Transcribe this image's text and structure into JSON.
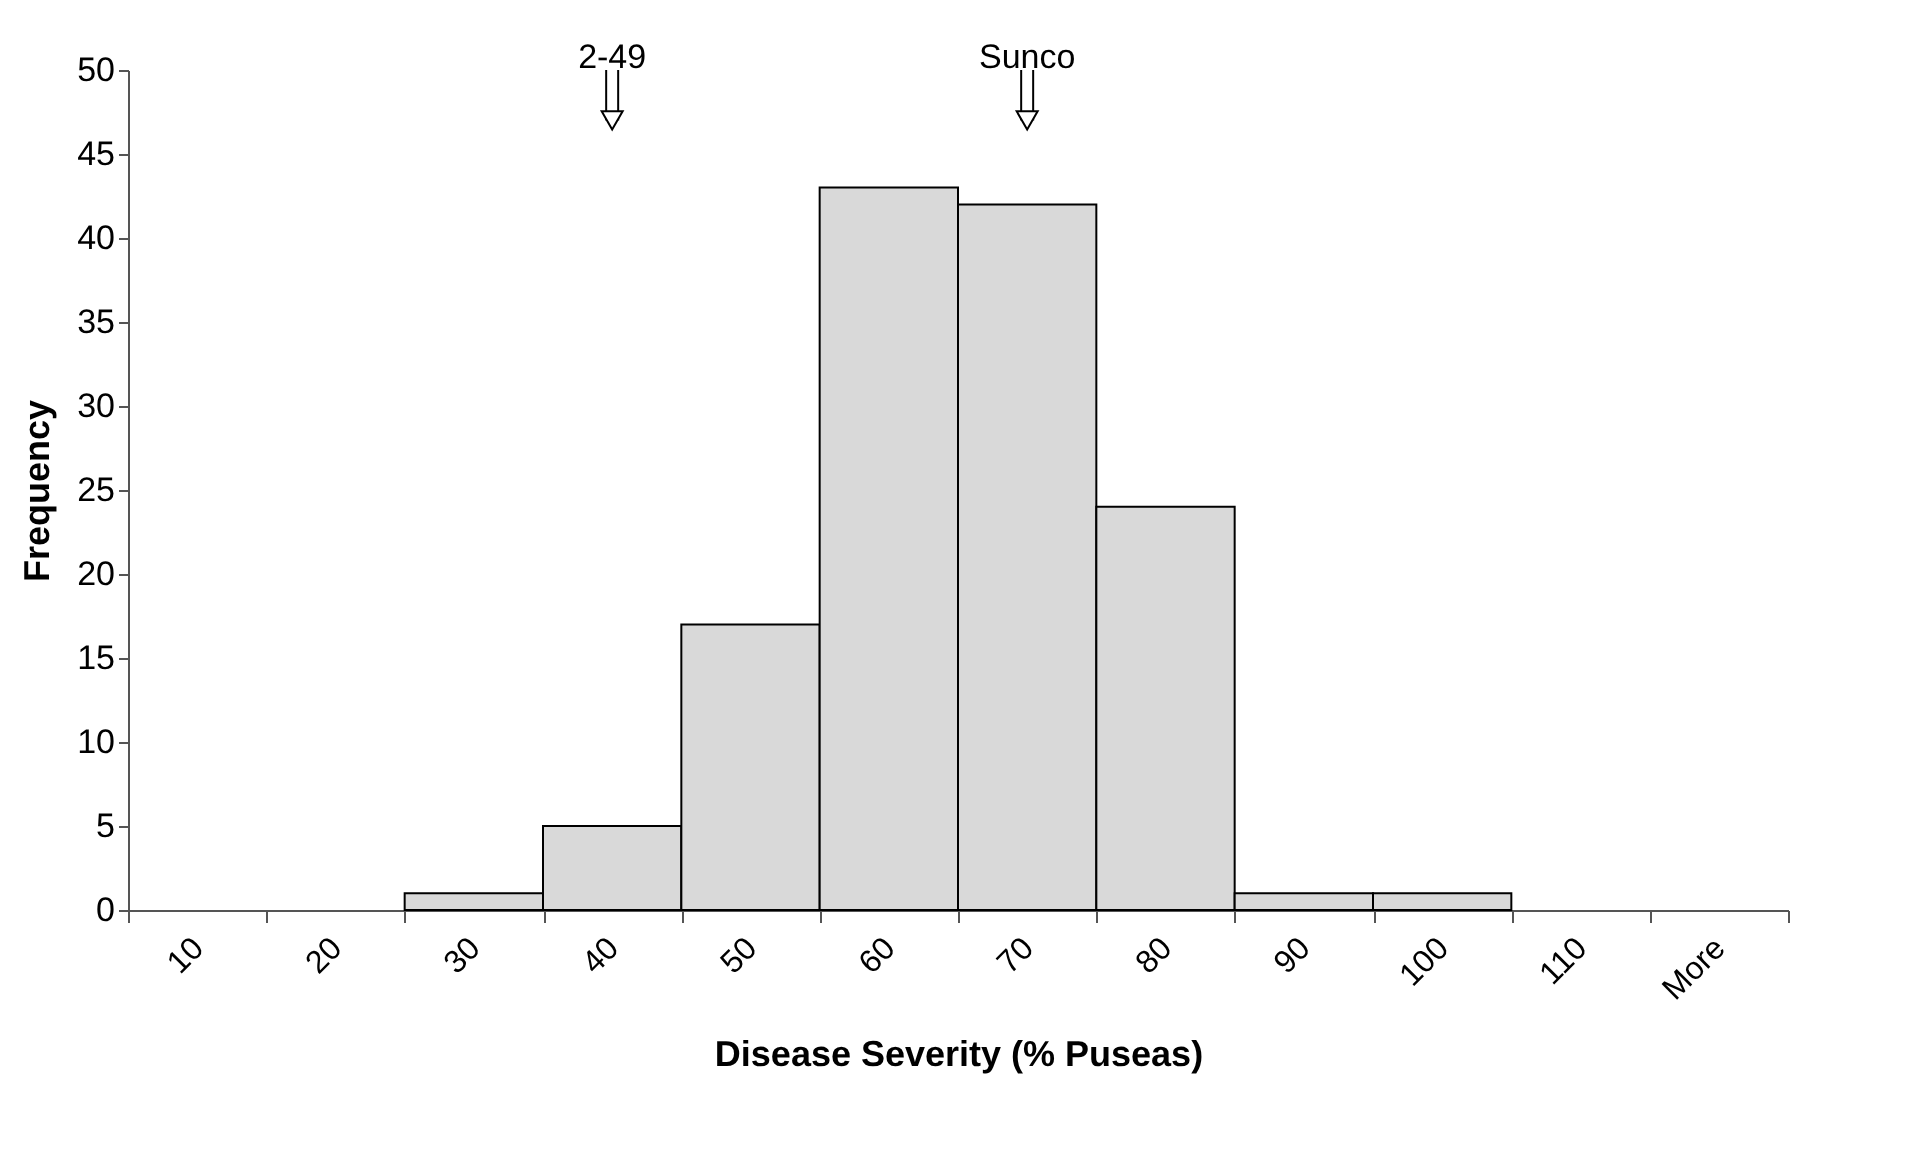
{
  "chart_data": {
    "type": "bar",
    "xlabel": "Disease Severity (% Puseas)",
    "ylabel": "Frequency",
    "categories": [
      "10",
      "20",
      "30",
      "40",
      "50",
      "60",
      "70",
      "80",
      "90",
      "100",
      "110",
      "More"
    ],
    "values": [
      0,
      0,
      1,
      5,
      17,
      43,
      42,
      24,
      1,
      1,
      0,
      0
    ],
    "color": "#d9d9d9",
    "ylim": [
      0,
      50
    ],
    "yticks": [
      0,
      5,
      10,
      15,
      20,
      25,
      30,
      35,
      40,
      45,
      50
    ],
    "grid": false,
    "annotations": [
      {
        "text": "2-49",
        "x": "40",
        "y": 47
      },
      {
        "text": "Sunco",
        "x": "70",
        "y": 47
      }
    ]
  }
}
